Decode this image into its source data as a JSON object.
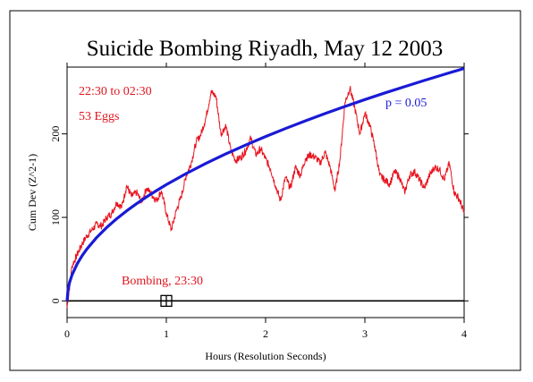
{
  "chart_data": {
    "type": "line",
    "title": "Suicide Bombing Riyadh, May 12 2003",
    "xlabel": "Hours (Resolution Seconds)",
    "ylabel": "Cum Dev (Z^2-1)",
    "xlim": [
      0,
      4
    ],
    "ylim": [
      -20,
      280
    ],
    "x_ticks": [
      0,
      1,
      2,
      3,
      4
    ],
    "x_tick_labels": [
      "0",
      "1",
      "2",
      "3",
      "4"
    ],
    "y_ticks": [
      0,
      100,
      200
    ],
    "y_tick_labels": [
      "0",
      "100",
      "200"
    ],
    "grid": false,
    "series": [
      {
        "color": "#e8141e",
        "x": [
          0,
          0.05,
          0.1,
          0.15,
          0.2,
          0.25,
          0.3,
          0.35,
          0.4,
          0.45,
          0.5,
          0.55,
          0.6,
          0.65,
          0.7,
          0.75,
          0.8,
          0.85,
          0.9,
          0.95,
          1.0,
          1.05,
          1.1,
          1.15,
          1.2,
          1.25,
          1.3,
          1.35,
          1.4,
          1.45,
          1.5,
          1.55,
          1.6,
          1.65,
          1.7,
          1.75,
          1.8,
          1.85,
          1.9,
          1.95,
          2.0,
          2.05,
          2.1,
          2.15,
          2.2,
          2.25,
          2.3,
          2.35,
          2.4,
          2.45,
          2.5,
          2.55,
          2.6,
          2.65,
          2.7,
          2.75,
          2.8,
          2.85,
          2.9,
          2.95,
          3.0,
          3.05,
          3.1,
          3.15,
          3.2,
          3.25,
          3.3,
          3.35,
          3.4,
          3.45,
          3.5,
          3.55,
          3.6,
          3.65,
          3.7,
          3.75,
          3.8,
          3.85,
          3.9,
          3.95,
          4.0
        ],
        "values": [
          -8,
          42,
          55,
          68,
          78,
          85,
          92,
          90,
          100,
          105,
          118,
          112,
          138,
          125,
          130,
          118,
          135,
          128,
          120,
          132,
          105,
          85,
          108,
          125,
          150,
          165,
          190,
          200,
          220,
          250,
          245,
          200,
          210,
          180,
          168,
          172,
          180,
          195,
          175,
          182,
          170,
          158,
          138,
          120,
          148,
          135,
          160,
          150,
          170,
          175,
          172,
          165,
          178,
          160,
          132,
          170,
          238,
          255,
          230,
          200,
          225,
          210,
          185,
          150,
          145,
          140,
          155,
          148,
          130,
          150,
          155,
          145,
          135,
          150,
          160,
          158,
          145,
          165,
          130,
          122,
          105
        ]
      },
      {
        "name": "p = 0.05",
        "color": "#1a1ad6",
        "x": [
          0,
          0.01,
          0.025,
          0.05,
          0.1,
          0.15,
          0.2,
          0.3,
          0.4,
          0.5,
          0.6,
          0.7,
          0.8,
          0.9,
          1.0,
          1.2,
          1.4,
          1.6,
          1.8,
          2.0,
          2.2,
          2.4,
          2.6,
          2.8,
          3.0,
          3.2,
          3.4,
          3.6,
          3.8,
          4.0
        ],
        "values": [
          0,
          13.9,
          22,
          31.1,
          44,
          53.9,
          62.2,
          76.2,
          88,
          98.4,
          107.8,
          116.4,
          124.5,
          132,
          139.2,
          152.5,
          164.7,
          176.1,
          186.7,
          196.8,
          206.4,
          215.6,
          224.4,
          232.9,
          241.1,
          249,
          256.6,
          264.1,
          271.3,
          278.4
        ]
      }
    ],
    "annotations": {
      "time_range": "22:30 to 02:30",
      "eggs": "53 Eggs",
      "bombing": "Bombing, 23:30",
      "bombing_x": 1.0,
      "bombing_y": 0
    }
  }
}
